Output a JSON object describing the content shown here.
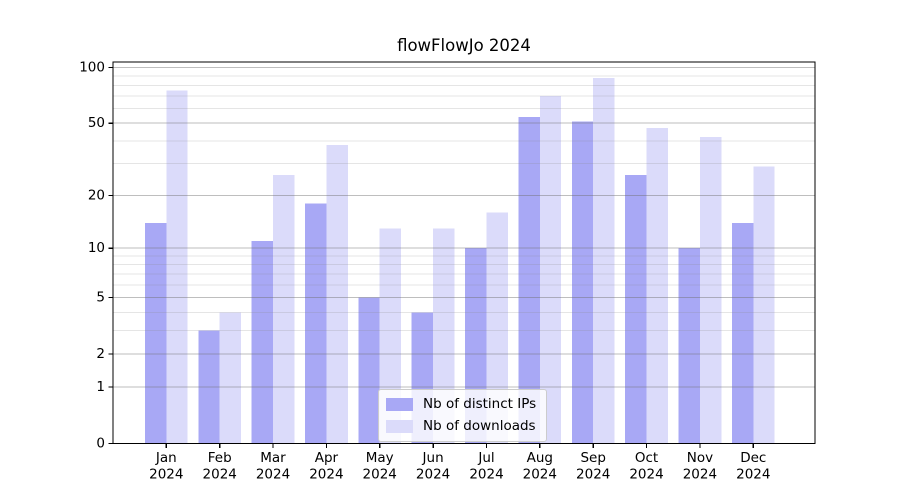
{
  "title": "flowFlowJo 2024",
  "chart_data": {
    "type": "bar",
    "title": "flowFlowJo 2024",
    "categories": [
      "Jan 2024",
      "Feb 2024",
      "Mar 2024",
      "Apr 2024",
      "May 2024",
      "Jun 2024",
      "Jul 2024",
      "Aug 2024",
      "Sep 2024",
      "Oct 2024",
      "Nov 2024",
      "Dec 2024"
    ],
    "series": [
      {
        "name": "Nb of distinct IPs",
        "color": "#a8a8f5",
        "values": [
          14,
          3,
          11,
          18,
          5,
          4,
          10,
          54,
          51,
          26,
          10,
          14
        ]
      },
      {
        "name": "Nb of downloads",
        "color": "#dbdbfa",
        "values": [
          75,
          4,
          26,
          38,
          13,
          13,
          16,
          70,
          88,
          47,
          42,
          29
        ]
      }
    ],
    "xlabel": "",
    "ylabel": "",
    "yscale": "log1p",
    "ylim": [
      0,
      107
    ],
    "yticks": [
      0,
      1,
      2,
      5,
      10,
      20,
      50,
      100
    ],
    "minor_yticks": [
      3,
      4,
      6,
      7,
      8,
      9,
      30,
      40,
      60,
      70,
      80,
      90
    ],
    "grid": true,
    "grid_on_top_of_bars": true,
    "legend_position": "inside lower-center",
    "axis_color": "#000000",
    "major_grid_color": "#c3c3c3",
    "minor_grid_color": "#e9e9e9"
  }
}
